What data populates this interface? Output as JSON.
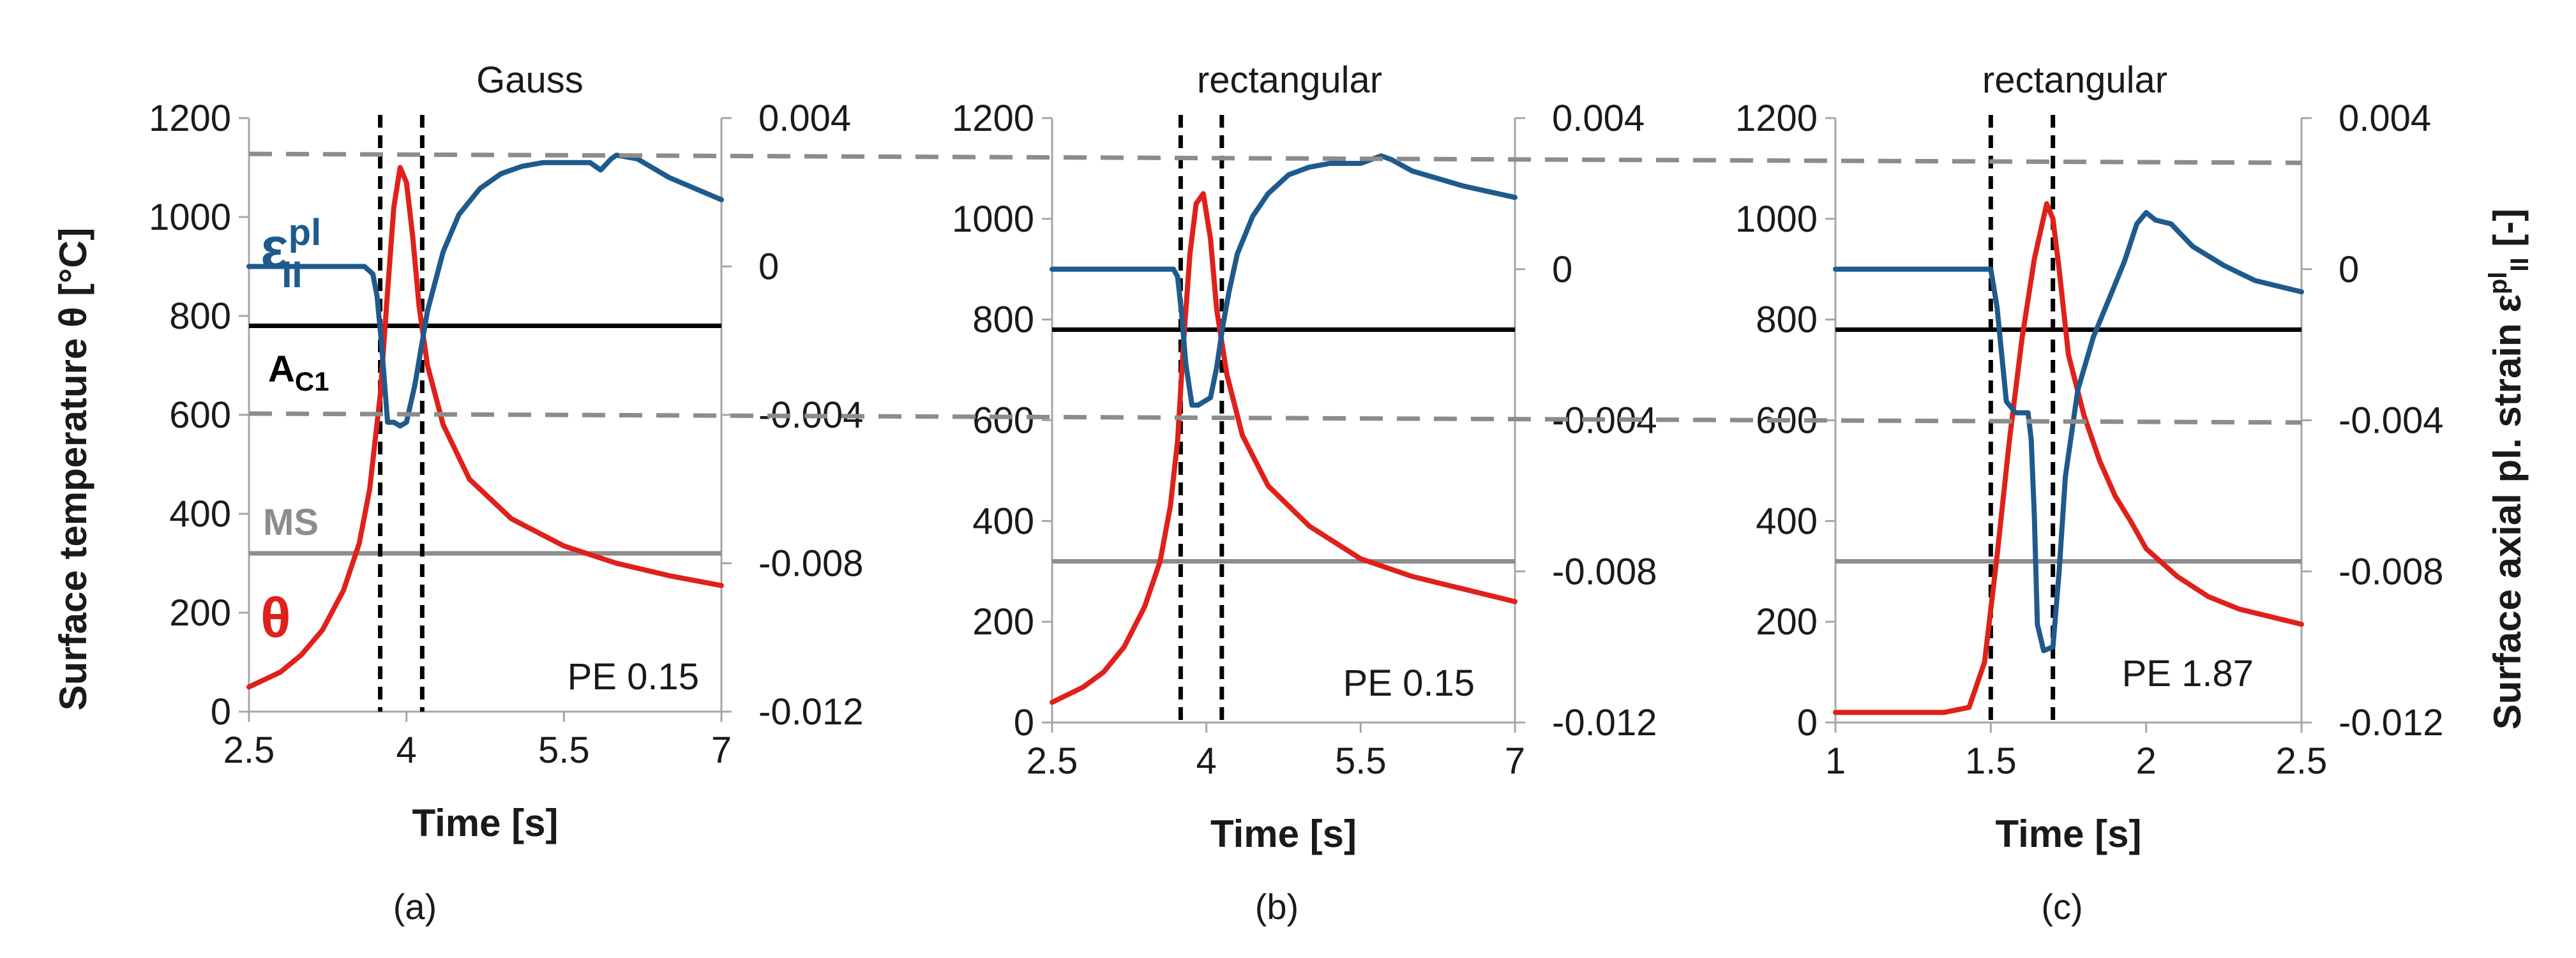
{
  "colors": {
    "temperature": "#e0201b",
    "strain": "#1f5a8c",
    "ac1": "#000000",
    "ms": "#8c8c8c",
    "strain_limit": "#8c8c8c",
    "phase_marker": "#000000",
    "axis": "#a6a6a6"
  },
  "labels": {
    "y_left": "Surface temperature θ [°C]",
    "y_right_prefix": "Surface axial pl. strain ε",
    "y_right_sup": "pl",
    "y_right_sub": "II",
    "y_right_suffix": " [-]",
    "legend_strain_main": "ε",
    "legend_strain_sup": "pl",
    "legend_strain_sub": "II",
    "legend_ac1_main": "A",
    "legend_ac1_sub": "C1",
    "legend_ms": "MS",
    "legend_theta": "θ"
  },
  "chart_data": [
    {
      "type": "line",
      "caption": "(a)",
      "title": "Gauss",
      "xlabel": "Time [s]",
      "ylabel": "Surface temperature θ [°C]",
      "x_ticks": [
        "2.5",
        "4",
        "5.5",
        "7"
      ],
      "xlim": [
        2.5,
        7
      ],
      "ylim": [
        0,
        1200
      ],
      "y_ticks": [
        "0",
        "200",
        "400",
        "600",
        "800",
        "1000",
        "1200"
      ],
      "y2lim": [
        -0.012,
        0.004
      ],
      "y2_ticks": [
        "-0.012",
        "-0.008",
        "-0.004",
        "0",
        "0.004"
      ],
      "annotation": "PE 0.15",
      "ac1": 780,
      "ms": 320,
      "strain_limits": [
        0.003,
        -0.004
      ],
      "phase_markers": [
        3.75,
        4.15
      ],
      "series": [
        {
          "name": "θ",
          "axis": "left",
          "x": [
            2.5,
            2.8,
            3.0,
            3.2,
            3.4,
            3.55,
            3.65,
            3.75,
            3.82,
            3.88,
            3.94,
            4.0,
            4.06,
            4.12,
            4.2,
            4.35,
            4.6,
            5.0,
            5.5,
            6.0,
            6.5,
            7.0
          ],
          "y": [
            50,
            80,
            115,
            165,
            245,
            340,
            450,
            640,
            850,
            1020,
            1100,
            1070,
            960,
            820,
            700,
            580,
            470,
            390,
            335,
            300,
            275,
            255
          ]
        },
        {
          "name": "εpl II",
          "axis": "right",
          "x": [
            2.5,
            3.2,
            3.6,
            3.68,
            3.72,
            3.76,
            3.82,
            3.88,
            3.94,
            4.0,
            4.08,
            4.14,
            4.2,
            4.35,
            4.5,
            4.7,
            4.9,
            5.1,
            5.3,
            5.5,
            5.75,
            5.85,
            5.95,
            6.0,
            6.2,
            6.5,
            7.0
          ],
          "y": [
            0.0,
            0.0,
            0.0,
            -0.0002,
            -0.0008,
            -0.002,
            -0.0042,
            -0.0042,
            -0.0043,
            -0.0042,
            -0.0032,
            -0.0022,
            -0.0012,
            0.0004,
            0.0014,
            0.0021,
            0.0025,
            0.0027,
            0.0028,
            0.0028,
            0.0028,
            0.0026,
            0.0029,
            0.003,
            0.0029,
            0.0024,
            0.0018
          ]
        }
      ]
    },
    {
      "type": "line",
      "caption": "(b)",
      "title": "rectangular",
      "xlabel": "Time [s]",
      "ylabel": "Surface temperature θ [°C]",
      "x_ticks": [
        "2.5",
        "4",
        "5.5",
        "7"
      ],
      "xlim": [
        2.5,
        7
      ],
      "ylim": [
        0,
        1200
      ],
      "y_ticks": [
        "0",
        "200",
        "400",
        "600",
        "800",
        "1000",
        "1200"
      ],
      "y2lim": [
        -0.012,
        0.004
      ],
      "y2_ticks": [
        "-0.012",
        "-0.008",
        "-0.004",
        "0",
        "0.004"
      ],
      "annotation": "PE 0.15",
      "ac1": 780,
      "ms": 320,
      "strain_limits": [
        0.003,
        -0.004
      ],
      "phase_markers": [
        3.75,
        4.15
      ],
      "series": [
        {
          "name": "θ",
          "axis": "left",
          "x": [
            2.5,
            2.8,
            3.0,
            3.2,
            3.4,
            3.55,
            3.65,
            3.72,
            3.78,
            3.84,
            3.9,
            3.97,
            4.04,
            4.1,
            4.2,
            4.35,
            4.6,
            5.0,
            5.5,
            6.0,
            6.5,
            7.0
          ],
          "y": [
            40,
            70,
            100,
            150,
            230,
            320,
            430,
            560,
            760,
            930,
            1030,
            1050,
            960,
            820,
            690,
            570,
            470,
            390,
            325,
            290,
            265,
            240
          ]
        },
        {
          "name": "εpl II",
          "axis": "right",
          "x": [
            2.5,
            3.2,
            3.68,
            3.72,
            3.76,
            3.8,
            3.86,
            3.92,
            3.98,
            4.04,
            4.1,
            4.16,
            4.22,
            4.3,
            4.45,
            4.6,
            4.8,
            5.0,
            5.2,
            5.4,
            5.5,
            5.6,
            5.7,
            5.8,
            6.0,
            6.5,
            7.0
          ],
          "y": [
            0.0,
            0.0,
            0.0,
            -0.0002,
            -0.0012,
            -0.0025,
            -0.0036,
            -0.0036,
            -0.0035,
            -0.0034,
            -0.0026,
            -0.0015,
            -0.0006,
            0.0004,
            0.0014,
            0.002,
            0.0025,
            0.0027,
            0.0028,
            0.0028,
            0.0028,
            0.0029,
            0.003,
            0.0029,
            0.0026,
            0.0022,
            0.0019
          ]
        }
      ]
    },
    {
      "type": "line",
      "caption": "(c)",
      "title": "rectangular",
      "xlabel": "Time [s]",
      "ylabel": "Surface temperature θ [°C]",
      "x_ticks": [
        "1",
        "1.5",
        "2",
        "2.5"
      ],
      "xlim": [
        1,
        2.5
      ],
      "ylim": [
        0,
        1200
      ],
      "y_ticks": [
        "0",
        "200",
        "400",
        "600",
        "800",
        "1000",
        "1200"
      ],
      "y2lim": [
        -0.012,
        0.004
      ],
      "y2_ticks": [
        "-0.012",
        "-0.008",
        "-0.004",
        "0",
        "0.004"
      ],
      "y2label": "Surface axial pl. strain εpl II [-]",
      "annotation": "PE 1.87",
      "ac1": 780,
      "ms": 320,
      "strain_limits": [
        0.003,
        -0.004
      ],
      "phase_markers": [
        1.5,
        1.7
      ],
      "series": [
        {
          "name": "θ",
          "axis": "left",
          "x": [
            1.0,
            1.35,
            1.43,
            1.48,
            1.52,
            1.56,
            1.6,
            1.64,
            1.68,
            1.7,
            1.72,
            1.75,
            1.8,
            1.85,
            1.9,
            1.95,
            2.0,
            2.1,
            2.2,
            2.3,
            2.5
          ],
          "y": [
            20,
            20,
            30,
            120,
            330,
            560,
            760,
            920,
            1030,
            1000,
            900,
            730,
            610,
            520,
            450,
            400,
            345,
            290,
            250,
            225,
            195
          ]
        },
        {
          "name": "εpl II",
          "axis": "right",
          "x": [
            1.0,
            1.3,
            1.5,
            1.52,
            1.55,
            1.58,
            1.6,
            1.62,
            1.63,
            1.64,
            1.65,
            1.67,
            1.7,
            1.72,
            1.74,
            1.78,
            1.83,
            1.88,
            1.93,
            1.97,
            2.0,
            2.03,
            2.08,
            2.15,
            2.25,
            2.35,
            2.5
          ],
          "y": [
            0.0,
            0.0,
            0.0,
            -0.001,
            -0.0035,
            -0.0038,
            -0.0038,
            -0.0038,
            -0.0045,
            -0.0065,
            -0.0094,
            -0.0101,
            -0.01,
            -0.008,
            -0.0055,
            -0.0032,
            -0.0018,
            -0.0008,
            0.0002,
            0.0012,
            0.0015,
            0.0013,
            0.0012,
            0.0006,
            0.0001,
            -0.0003,
            -0.0006
          ]
        }
      ]
    }
  ]
}
